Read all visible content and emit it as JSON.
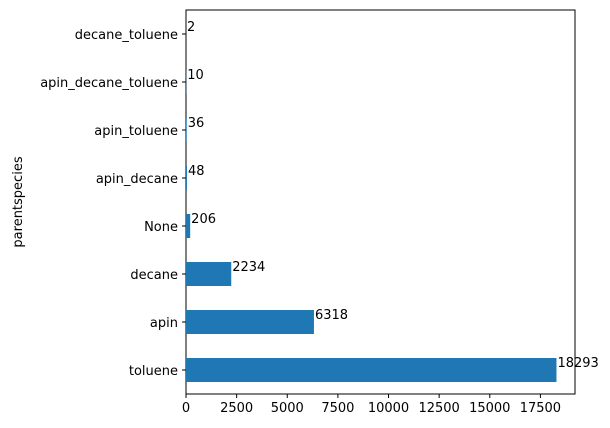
{
  "chart_data": {
    "type": "bar",
    "orientation": "horizontal",
    "categories": [
      "toluene",
      "apin",
      "decane",
      "None",
      "apin_decane",
      "apin_toluene",
      "apin_decane_toluene",
      "decane_toluene"
    ],
    "values": [
      18293,
      6318,
      2234,
      206,
      48,
      36,
      10,
      2
    ],
    "data_labels": [
      "18293",
      "6318",
      "2234",
      "206",
      "48",
      "36",
      "10",
      "2"
    ],
    "xticks": [
      0,
      2500,
      5000,
      7500,
      10000,
      12500,
      15000,
      17500
    ],
    "xtick_labels": [
      "0",
      "2500",
      "5000",
      "7500",
      "10000",
      "12500",
      "15000",
      "17500"
    ],
    "xlim": [
      0,
      19208
    ],
    "ylabel": "parentspecies",
    "xlabel": "",
    "bar_color": "#1f77b4",
    "grid": false,
    "legend": "none"
  }
}
